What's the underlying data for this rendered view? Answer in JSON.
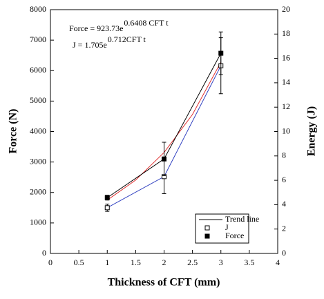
{
  "chart_data": {
    "type": "line",
    "xlabel": "Thickness of CFT (mm)",
    "ylabel": "Force (N)",
    "y2label": "Energy (J)",
    "xlim": [
      0,
      4
    ],
    "xticks": [
      0,
      0.5,
      1,
      1.5,
      2,
      2.5,
      3,
      3.5,
      4
    ],
    "ylim": [
      0,
      8000
    ],
    "yticks": [
      0,
      1000,
      2000,
      3000,
      4000,
      5000,
      6000,
      7000,
      8000
    ],
    "y2lim": [
      0,
      20
    ],
    "y2ticks": [
      0,
      2,
      4,
      6,
      8,
      10,
      12,
      14,
      16,
      18,
      20
    ],
    "annotations": [
      {
        "text": "Force = 923.73e",
        "sup": "0.6408 CFT t"
      },
      {
        "text": "J = 1.705e",
        "sup": "0.712CFT t"
      }
    ],
    "legend": "lower right",
    "series": [
      {
        "name": "Trend line",
        "color": "#e03030",
        "marker": "none",
        "x": [
          1,
          1.5,
          2,
          2.5,
          3
        ],
        "values": [
          1749,
          2408,
          3313,
          4560,
          6277
        ]
      },
      {
        "name": "J",
        "color": "#3040c0",
        "marker": "open-square",
        "axis": "y2",
        "x": [
          1,
          2,
          3
        ],
        "values": [
          3.75,
          6.3,
          15.4
        ],
        "errors": [
          0.3,
          1.4,
          2.3
        ]
      },
      {
        "name": "Force",
        "color": "#000000",
        "marker": "filled-square",
        "x": [
          1,
          2,
          3
        ],
        "values": [
          1830,
          3100,
          6570
        ],
        "errors": [
          80,
          550,
          700
        ]
      }
    ]
  }
}
